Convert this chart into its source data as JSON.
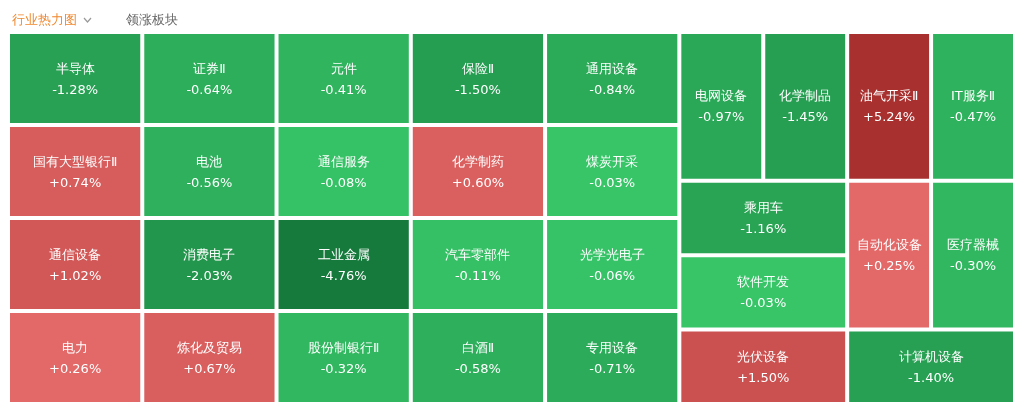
{
  "chart_data": {
    "type": "other",
    "title": "行业热力图",
    "annotations": [
      "领涨板块"
    ],
    "categories": [
      "半导体",
      "国有大型银行Ⅱ",
      "通信设备",
      "电力",
      "证券Ⅱ",
      "电池",
      "消费电子",
      "炼化及贸易",
      "元件",
      "通信服务",
      "工业金属",
      "股份制银行Ⅱ",
      "保险Ⅱ",
      "化学制药",
      "汽车零部件",
      "白酒Ⅱ",
      "通用设备",
      "煤炭开采",
      "光学光电子",
      "专用设备",
      "电网设备",
      "化学制品",
      "油气开采Ⅱ",
      "IT服务Ⅱ",
      "乘用车",
      "软件开发",
      "光伏设备",
      "自动化设备",
      "医疗器械",
      "计算机设备"
    ],
    "values": [
      -1.28,
      0.74,
      1.02,
      0.26,
      -0.64,
      -0.56,
      -2.03,
      0.67,
      -0.41,
      -0.08,
      -4.76,
      -0.32,
      -1.5,
      0.6,
      -0.11,
      -0.58,
      -0.84,
      -0.03,
      -0.06,
      -0.71,
      -0.97,
      -1.45,
      5.24,
      -0.47,
      -1.16,
      -0.03,
      1.5,
      0.25,
      -0.3,
      -1.4
    ],
    "value_labels": [
      "-1.28%",
      "+0.74%",
      "+1.02%",
      "+0.26%",
      "-0.64%",
      "-0.56%",
      "-2.03%",
      "+0.67%",
      "-0.41%",
      "-0.08%",
      "-4.76%",
      "-0.32%",
      "-1.50%",
      "+0.60%",
      "-0.11%",
      "-0.58%",
      "-0.84%",
      "-0.03%",
      "-0.06%",
      "-0.71%",
      "-0.97%",
      "-1.45%",
      "+5.24%",
      "-0.47%",
      "-1.16%",
      "-0.03%",
      "+1.50%",
      "+0.25%",
      "-0.30%",
      "-1.40%"
    ]
  }
}
